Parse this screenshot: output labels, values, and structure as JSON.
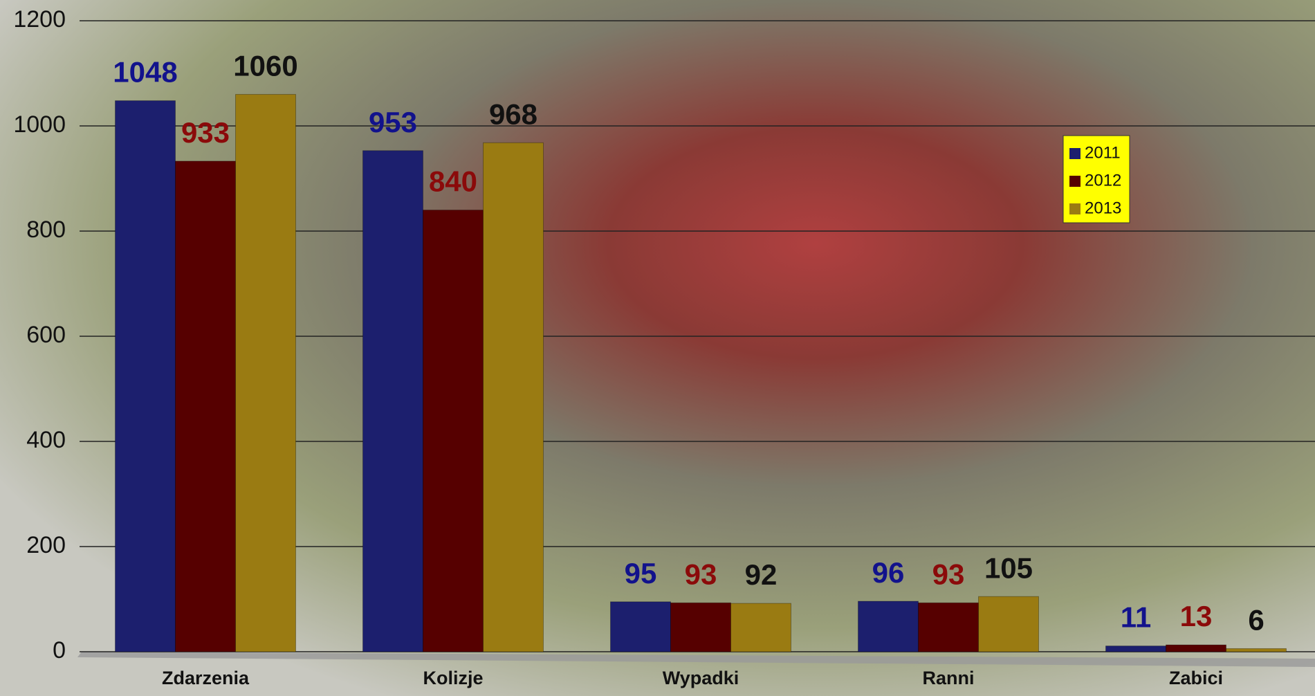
{
  "chart_data": {
    "type": "bar",
    "categories": [
      "Zdarzenia",
      "Kolizje",
      "Wypadki",
      "Ranni",
      "Zabici"
    ],
    "series": [
      {
        "name": "2011",
        "color": "#1c1f6e",
        "label_color": "#12128c",
        "values": [
          1048,
          953,
          95,
          96,
          11
        ]
      },
      {
        "name": "2012",
        "color": "#560000",
        "label_color": "#8b0a0a",
        "values": [
          933,
          840,
          93,
          93,
          13
        ]
      },
      {
        "name": "2013",
        "color": "#9a7b12",
        "label_color": "#111111",
        "values": [
          1060,
          968,
          92,
          105,
          6
        ]
      }
    ],
    "ylim": [
      0,
      1200
    ],
    "yticks": [
      0,
      200,
      400,
      600,
      800,
      1000,
      1200
    ],
    "grid": true,
    "legend": "right"
  }
}
